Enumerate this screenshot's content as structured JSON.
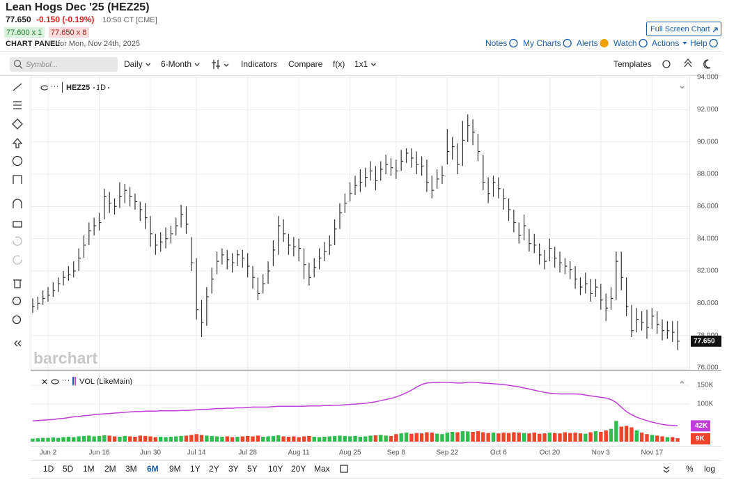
{
  "header": {
    "title": "Lean Hogs Dec '25 (HEZ25)",
    "last": "77.650",
    "change": "-0.150 (-0.19%)",
    "time": "10:50 CT [CME]",
    "bid": "77.600 x 1",
    "ask": "77.650 x 8",
    "panel_label": "CHART PANEL",
    "panel_date": "for Mon, Nov 24th, 2025",
    "fullscreen": "Full Screen Chart"
  },
  "links": [
    "Notes",
    "My Charts",
    "Alerts",
    "Watch",
    "Actions",
    "Help"
  ],
  "toolbar": {
    "search": "Symbol...",
    "items": [
      "Daily",
      "6-Month",
      "Indicators",
      "Compare",
      "f(x)",
      "1x1"
    ],
    "templates": "Templates"
  },
  "chart_data": [
    {
      "type": "ohlc",
      "symbol_label": "HEZ25",
      "interval": "1D",
      "watermark": "barchart",
      "last_label": "77.650",
      "color": "#333333",
      "close": [
        79.8,
        80.0,
        80.3,
        80.5,
        80.8,
        81.2,
        81.6,
        81.8,
        82.0,
        82.8,
        83.6,
        84.5,
        84.8,
        85.0,
        86.6,
        86.2,
        86.0,
        86.6,
        87.0,
        86.6,
        86.3,
        85.8,
        85.3,
        84.3,
        83.6,
        83.8,
        84.0,
        84.3,
        84.8,
        85.5,
        84.9,
        82.5,
        79.6,
        78.8,
        80.4,
        81.5,
        82.6,
        83.0,
        82.7,
        82.5,
        83.0,
        82.8,
        82.3,
        81.6,
        80.6,
        81.2,
        82.0,
        83.3,
        84.8,
        84.3,
        83.6,
        83.5,
        83.4,
        82.4,
        81.6,
        82.2,
        82.8,
        83.2,
        83.6,
        84.6,
        85.6,
        86.2,
        86.8,
        87.3,
        87.5,
        87.8,
        88.2,
        87.6,
        88.3,
        88.6,
        88.4,
        88.2,
        88.8,
        89.3,
        89.0,
        88.6,
        88.5,
        87.5,
        87.0,
        87.7,
        87.9,
        89.4,
        89.7,
        88.6,
        90.1,
        91.0,
        90.6,
        89.4,
        87.5,
        86.8,
        87.5,
        87.1,
        86.5,
        85.8,
        85.0,
        84.2,
        84.8,
        83.7,
        83.6,
        83.0,
        82.6,
        83.4,
        82.8,
        82.5,
        82.3,
        82.1,
        81.5,
        81.0,
        81.2,
        80.6,
        81.0,
        80.2,
        79.7,
        80.3,
        82.6,
        81.6,
        79.8,
        78.3,
        79.0,
        78.8,
        78.5,
        79.2,
        78.7,
        78.3,
        78.3,
        78.2,
        77.65
      ],
      "high": [
        80.3,
        80.4,
        80.8,
        81.0,
        81.3,
        81.6,
        82.0,
        82.3,
        82.6,
        83.4,
        84.2,
        85.0,
        85.3,
        85.6,
        87.1,
        86.9,
        86.5,
        87.5,
        87.4,
        87.2,
        86.8,
        86.3,
        86.2,
        85.4,
        84.3,
        84.4,
        84.7,
        84.8,
        85.3,
        86.1,
        86.0,
        84.1,
        82.8,
        80.2,
        81.0,
        82.2,
        83.2,
        83.4,
        83.3,
        83.1,
        83.3,
        83.3,
        83.1,
        82.3,
        81.6,
        81.8,
        82.6,
        83.9,
        85.4,
        85.2,
        84.3,
        84.1,
        84.0,
        83.4,
        82.5,
        82.8,
        83.4,
        83.8,
        84.2,
        85.2,
        86.2,
        86.8,
        87.5,
        87.9,
        88.3,
        88.4,
        88.8,
        88.5,
        88.8,
        89.2,
        89.0,
        88.9,
        89.5,
        89.6,
        89.6,
        89.4,
        89.1,
        88.9,
        87.9,
        88.3,
        88.5,
        90.8,
        90.3,
        89.9,
        91.3,
        91.7,
        91.4,
        90.5,
        89.2,
        87.8,
        87.9,
        87.8,
        87.1,
        86.5,
        85.8,
        85.0,
        85.5,
        84.6,
        84.3,
        83.7,
        83.3,
        84.0,
        83.5,
        83.2,
        82.8,
        82.6,
        82.3,
        81.6,
        81.9,
        81.5,
        81.5,
        81.2,
        80.6,
        81.0,
        83.2,
        83.2,
        81.6,
        79.9,
        79.7,
        79.5,
        79.6,
        79.7,
        79.5,
        79.0,
        78.9,
        78.9,
        78.9
      ],
      "low": [
        79.4,
        79.6,
        79.9,
        80.1,
        80.4,
        80.7,
        81.1,
        81.4,
        81.6,
        82.0,
        82.8,
        83.6,
        84.2,
        84.5,
        85.2,
        85.6,
        85.5,
        85.9,
        86.2,
        86.0,
        85.8,
        85.1,
        84.6,
        83.5,
        83.0,
        83.2,
        83.4,
        83.7,
        84.2,
        84.7,
        84.3,
        82.0,
        79.0,
        77.9,
        78.6,
        80.6,
        81.8,
        82.4,
        82.1,
        81.9,
        82.3,
        82.2,
        81.6,
        80.9,
        80.2,
        80.6,
        81.2,
        82.3,
        83.0,
        83.8,
        83.0,
        82.9,
        82.6,
        81.5,
        81.1,
        81.6,
        82.1,
        82.6,
        83.0,
        83.6,
        84.6,
        85.6,
        86.3,
        86.7,
        86.9,
        87.2,
        87.6,
        87.0,
        87.6,
        88.0,
        87.9,
        87.7,
        88.2,
        88.7,
        88.4,
        88.0,
        87.9,
        86.9,
        86.5,
        87.1,
        87.4,
        88.6,
        88.9,
        88.0,
        88.5,
        90.0,
        89.8,
        88.8,
        87.0,
        86.2,
        86.6,
        86.5,
        85.8,
        85.1,
        84.4,
        83.7,
        83.9,
        83.2,
        83.1,
        82.4,
        82.1,
        82.6,
        82.2,
        81.9,
        81.8,
        81.5,
        80.9,
        80.5,
        80.6,
        80.1,
        80.4,
        79.6,
        78.9,
        79.6,
        80.2,
        80.8,
        79.2,
        77.9,
        78.2,
        78.3,
        77.8,
        78.4,
        78.1,
        77.7,
        77.8,
        77.6,
        77.1
      ],
      "xlim": [
        -0.4,
        128.3
      ],
      "xticks": [
        {
          "value": 3,
          "label": "Jun 2"
        },
        {
          "value": 13,
          "label": "Jun 16"
        },
        {
          "value": 23,
          "label": "Jun 30"
        },
        {
          "value": 32,
          "label": "Jul 14"
        },
        {
          "value": 42,
          "label": "Jul 28"
        },
        {
          "value": 52,
          "label": "Aug 11"
        },
        {
          "value": 62,
          "label": "Aug 25"
        },
        {
          "value": 71,
          "label": "Sep 8"
        },
        {
          "value": 81,
          "label": "Sep 22"
        },
        {
          "value": 91,
          "label": "Oct 6"
        },
        {
          "value": 101,
          "label": "Oct 20"
        },
        {
          "value": 111,
          "label": "Nov 3"
        },
        {
          "value": 121,
          "label": "Nov 17"
        }
      ],
      "ylim": [
        76,
        94
      ],
      "yticks": [
        {
          "value": 76,
          "label": "76.000"
        },
        {
          "value": 78,
          "label": "78.000"
        },
        {
          "value": 80,
          "label": "80.000"
        },
        {
          "value": 82,
          "label": "82.000"
        },
        {
          "value": 84,
          "label": "84.000"
        },
        {
          "value": 86,
          "label": "86.000"
        },
        {
          "value": 88,
          "label": "88.000"
        },
        {
          "value": 90,
          "label": "90.000"
        },
        {
          "value": 92,
          "label": "92.000"
        },
        {
          "value": 94,
          "label": "94.000"
        }
      ],
      "grid": true
    },
    {
      "type": "volume",
      "title": "VOL (LikeMain)",
      "up_color": "#2ebd4e",
      "down_color": "#f0432c",
      "ma_color": "#c03fd8",
      "values": [
        8,
        9,
        10,
        10,
        11,
        10,
        12,
        13,
        12,
        14,
        15,
        16,
        14,
        15,
        17,
        16,
        14,
        13,
        15,
        14,
        13,
        16,
        15,
        14,
        12,
        13,
        12,
        13,
        14,
        15,
        16,
        18,
        20,
        18,
        16,
        15,
        14,
        13,
        14,
        12,
        13,
        14,
        15,
        14,
        16,
        13,
        14,
        15,
        17,
        14,
        13,
        14,
        12,
        14,
        15,
        13,
        12,
        13,
        14,
        15,
        16,
        15,
        14,
        15,
        13,
        14,
        16,
        17,
        18,
        16,
        15,
        20,
        22,
        24,
        21,
        23,
        22,
        25,
        24,
        21,
        20,
        24,
        26,
        25,
        28,
        27,
        26,
        28,
        25,
        23,
        24,
        22,
        24,
        23,
        25,
        24,
        23,
        22,
        24,
        21,
        22,
        24,
        23,
        22,
        25,
        23,
        24,
        22,
        21,
        25,
        28,
        26,
        30,
        34,
        55,
        40,
        42,
        38,
        30,
        24,
        20,
        18,
        16,
        14,
        12,
        12,
        9
      ],
      "ma": [
        55,
        56,
        57,
        58,
        59,
        61,
        62,
        64,
        66,
        67,
        69,
        70,
        72,
        73,
        74,
        75,
        76,
        77,
        78,
        79,
        80,
        80,
        81,
        81,
        81,
        82,
        82,
        82,
        82,
        83,
        83,
        84,
        85,
        86,
        86,
        87,
        88,
        88,
        89,
        89,
        90,
        90,
        91,
        92,
        92,
        92,
        92,
        93,
        94,
        94,
        94,
        94,
        94,
        94,
        95,
        95,
        95,
        96,
        96,
        97,
        97,
        98,
        99,
        100,
        101,
        102,
        104,
        106,
        109,
        112,
        115,
        119,
        124,
        130,
        137,
        145,
        152,
        156,
        157,
        157,
        158,
        158,
        157,
        156,
        156,
        158,
        158,
        157,
        156,
        155,
        154,
        153,
        152,
        150,
        148,
        146,
        143,
        140,
        137,
        134,
        131,
        129,
        128,
        127,
        127,
        127,
        127,
        126,
        124,
        122,
        120,
        118,
        116,
        112,
        104,
        92,
        80,
        72,
        65,
        60,
        56,
        52,
        49,
        46,
        44,
        43,
        42
      ],
      "ma_label": "42K",
      "last_label": "9K",
      "ylim": [
        0,
        178
      ],
      "yticks": [
        {
          "value": 100,
          "label": "100K"
        },
        {
          "value": 150,
          "label": "150K"
        }
      ]
    }
  ],
  "ranges": [
    "1D",
    "5D",
    "1M",
    "2M",
    "3M",
    "6M",
    "9M",
    "1Y",
    "2Y",
    "3Y",
    "5Y",
    "10Y",
    "20Y",
    "Max"
  ],
  "active_range": 5,
  "bottom_right": [
    "%",
    "log"
  ]
}
